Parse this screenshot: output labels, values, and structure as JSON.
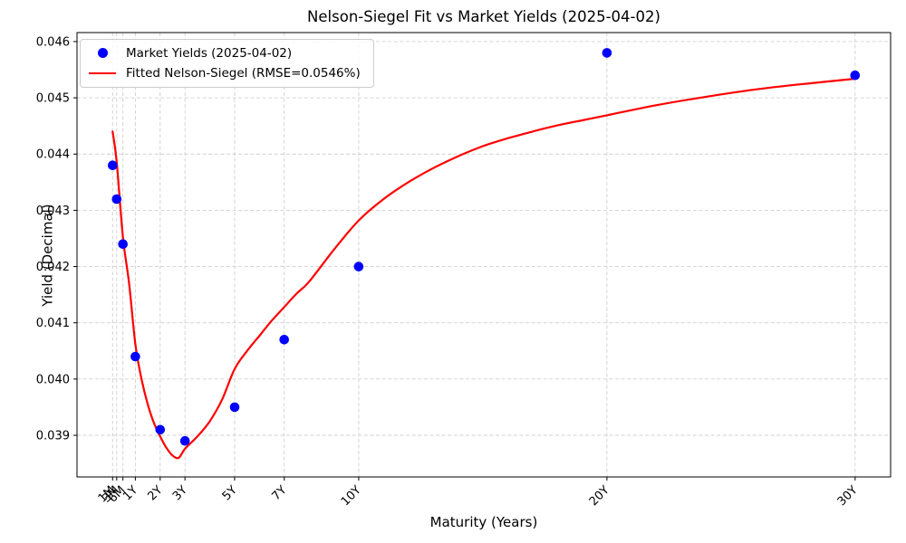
{
  "chart_data": {
    "type": "scatter+line",
    "title": "Nelson-Siegel Fit vs Market Yields (2025-04-02)",
    "xlabel": "Maturity (Years)",
    "ylabel": "Yield (Decimal)",
    "grid": true,
    "grid_style": "dashed",
    "legend_position": "upper left",
    "xlim": [
      -1.35,
      31.43
    ],
    "ylim": [
      0.03826,
      0.04616
    ],
    "x_ticks": {
      "labels": [
        "1M",
        "3M",
        "6M",
        "1Y",
        "2Y",
        "3Y",
        "5Y",
        "7Y",
        "10Y",
        "20Y",
        "30Y"
      ],
      "years": [
        0.0833,
        0.25,
        0.5,
        1,
        2,
        3,
        5,
        7,
        10,
        20,
        30
      ],
      "rotation_deg": 45
    },
    "y_ticks": [
      0.039,
      0.04,
      0.041,
      0.042,
      0.043,
      0.044,
      0.045,
      0.046
    ],
    "y_tick_decimals": 3,
    "series": [
      {
        "name": "Market Yields (2025-04-02)",
        "type": "scatter",
        "color": "#0000ff",
        "marker": "dot",
        "x_labels": [
          "1M",
          "3M",
          "6M",
          "1Y",
          "2Y",
          "3Y",
          "5Y",
          "7Y",
          "10Y",
          "20Y",
          "30Y"
        ],
        "x": [
          0.0833,
          0.25,
          0.5,
          1,
          2,
          3,
          5,
          7,
          10,
          20,
          30
        ],
        "y": [
          0.0438,
          0.0432,
          0.0424,
          0.0404,
          0.0391,
          0.0389,
          0.0395,
          0.0407,
          0.042,
          0.0458,
          0.0454
        ]
      },
      {
        "name": "Fitted Nelson-Siegel (RMSE=0.0546%)",
        "type": "line",
        "color": "#ff0000",
        "rmse_pct": "0.0546",
        "x": [
          0.083,
          0.25,
          0.5,
          0.75,
          1.0,
          1.25,
          1.5,
          1.75,
          2.0,
          2.25,
          2.5,
          2.75,
          3.0,
          3.5,
          4.0,
          4.5,
          5.0,
          5.5,
          6.0,
          6.5,
          7.0,
          7.5,
          8.0,
          9.0,
          10.0,
          11.0,
          12.0,
          13.0,
          14.0,
          15.0,
          16.0,
          17.0,
          18.0,
          19.0,
          20.0,
          22.0,
          24.0,
          26.0,
          28.0,
          30.0
        ],
        "y": [
          0.0444,
          0.04386,
          0.04252,
          0.0417,
          0.04062,
          0.04,
          0.03955,
          0.03922,
          0.03898,
          0.03878,
          0.03864,
          0.0386,
          0.03876,
          0.03898,
          0.03925,
          0.03964,
          0.04018,
          0.0405,
          0.04077,
          0.04104,
          0.04128,
          0.04152,
          0.04173,
          0.0423,
          0.04282,
          0.0432,
          0.0435,
          0.04375,
          0.04396,
          0.04414,
          0.04428,
          0.0444,
          0.04451,
          0.0446,
          0.04469,
          0.04487,
          0.04502,
          0.04515,
          0.04525,
          0.04534
        ]
      }
    ]
  },
  "colors": {
    "background": "#ffffff",
    "scatter": "#0000ff",
    "fit_line": "#ff0000",
    "grid": "#cfcfcf",
    "spine": "#000000",
    "text": "#000000",
    "legend_border": "#cccccc"
  }
}
